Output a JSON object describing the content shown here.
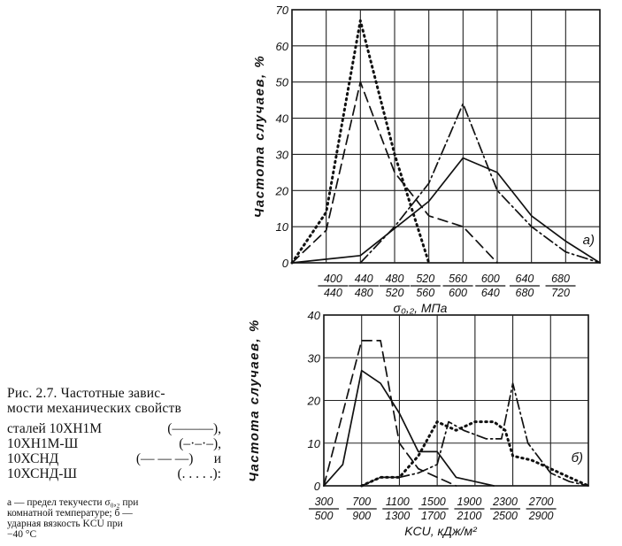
{
  "caption": {
    "lines": [
      "Рис. 2.7. Частотные завис-",
      "мости механических свойств"
    ],
    "legend": [
      {
        "name": "сталей 10ХН1М",
        "style": "(———),"
      },
      {
        "name": "10ХН1М-Ш",
        "style": "(–·–·–),"
      },
      {
        "name": "10ХСНД",
        "style": "(— — —)      и"
      },
      {
        "name": "10ХСНД-Ш",
        "style": "(. . . . .):"
      }
    ],
    "note_lines": [
      "а — предел текучести σ₀,₂ при",
      "комнатной температуре; б —",
      "ударная вязкость KCU при",
      "−40 °C"
    ]
  },
  "chart_data": [
    {
      "type": "line",
      "panel_label": "а)",
      "ylabel": "Частота случаев, %",
      "xlabel": "σ₀,₂, МПа",
      "ylim": [
        0,
        70
      ],
      "yticks": [
        "0",
        "10",
        "20",
        "30",
        "40",
        "50",
        "60",
        "70"
      ],
      "xticks_top": [
        "400",
        "440",
        "480",
        "520",
        "560",
        "600",
        "640",
        "680"
      ],
      "xticks_bottom": [
        "440",
        "480",
        "520",
        "560",
        "600",
        "640",
        "680",
        "720"
      ],
      "x_positions": [
        0,
        1,
        2,
        3,
        4,
        5,
        6,
        7,
        8,
        9
      ],
      "series": [
        {
          "name": "10ХН1М",
          "dash": "solid",
          "color": "#111111",
          "points": [
            [
              2,
              0
            ],
            [
              4,
              2
            ],
            [
              6,
              17
            ],
            [
              7,
              29
            ],
            [
              8,
              25
            ],
            [
              9,
              13
            ],
            [
              10,
              6
            ],
            [
              11,
              0
            ]
          ]
        },
        {
          "name": "10ХН1М-Ш",
          "dash": "dashdot",
          "color": "#111111",
          "points": [
            [
              4,
              0
            ],
            [
              5,
              10
            ],
            [
              6,
              22
            ],
            [
              7,
              44
            ],
            [
              8,
              20
            ],
            [
              9,
              10
            ],
            [
              10,
              3
            ],
            [
              11,
              0
            ]
          ]
        },
        {
          "name": "10ХСНД",
          "dash": "dashed",
          "color": "#111111",
          "points": [
            [
              2,
              0
            ],
            [
              3,
              9
            ],
            [
              4,
              50
            ],
            [
              5,
              25
            ],
            [
              6,
              13
            ],
            [
              7,
              10
            ],
            [
              8,
              0
            ]
          ]
        },
        {
          "name": "10ХСНД-Ш",
          "dash": "dotted",
          "color": "#111111",
          "points": [
            [
              2,
              0
            ],
            [
              3,
              14
            ],
            [
              4,
              67
            ],
            [
              5,
              30
            ],
            [
              6,
              0
            ]
          ]
        }
      ]
    },
    {
      "type": "line",
      "panel_label": "б)",
      "ylabel": "Частота случаев, %",
      "xlabel": "KCU, кДж/м²",
      "ylim": [
        0,
        40
      ],
      "yticks": [
        "0",
        "10",
        "20",
        "30",
        "40"
      ],
      "xticks_top": [
        "300",
        "700",
        "1100",
        "1500",
        "1900",
        "2300",
        "2700"
      ],
      "xticks_bottom": [
        "500",
        "900",
        "1300",
        "1700",
        "2100",
        "2500",
        "2900"
      ],
      "series": [
        {
          "name": "10ХН1М",
          "dash": "solid",
          "color": "#111111",
          "points": [
            [
              0,
              0
            ],
            [
              0.5,
              5
            ],
            [
              1,
              27
            ],
            [
              1.5,
              24
            ],
            [
              2,
              17
            ],
            [
              2.5,
              8
            ],
            [
              3,
              8
            ],
            [
              3.5,
              2
            ],
            [
              4,
              1
            ],
            [
              4.5,
              0
            ]
          ]
        },
        {
          "name": "10ХН1М-Ш",
          "dash": "dashdot",
          "color": "#111111",
          "points": [
            [
              1,
              0
            ],
            [
              1.5,
              2
            ],
            [
              2,
              2
            ],
            [
              2.5,
              3
            ],
            [
              3,
              5
            ],
            [
              3.3,
              15
            ],
            [
              3.7,
              13
            ],
            [
              4.3,
              11
            ],
            [
              4.7,
              11
            ],
            [
              5,
              24
            ],
            [
              5.4,
              10
            ],
            [
              6,
              3
            ],
            [
              6.5,
              1
            ],
            [
              7,
              0
            ]
          ]
        },
        {
          "name": "10ХСНД",
          "dash": "dashed",
          "color": "#111111",
          "points": [
            [
              0,
              0
            ],
            [
              1,
              34
            ],
            [
              1.5,
              34
            ],
            [
              2,
              10
            ],
            [
              2.5,
              4
            ],
            [
              3,
              2
            ],
            [
              3.5,
              0
            ]
          ]
        },
        {
          "name": "10ХСНД-Ш",
          "dash": "dotted",
          "color": "#111111",
          "points": [
            [
              1,
              0
            ],
            [
              1.5,
              2
            ],
            [
              2,
              2
            ],
            [
              2.5,
              7
            ],
            [
              3,
              15
            ],
            [
              3.5,
              13
            ],
            [
              4,
              15
            ],
            [
              4.5,
              15
            ],
            [
              4.8,
              13
            ],
            [
              5,
              7
            ],
            [
              5.5,
              6
            ],
            [
              6,
              4
            ],
            [
              6.5,
              2
            ],
            [
              7,
              0
            ]
          ]
        }
      ]
    }
  ]
}
